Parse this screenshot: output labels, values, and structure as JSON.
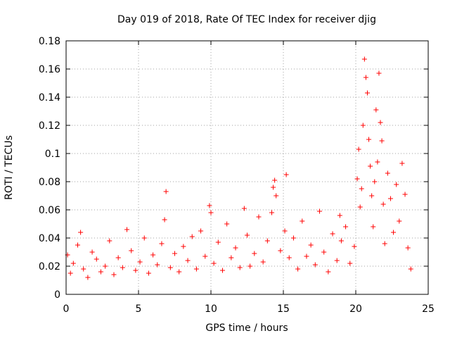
{
  "chart_data": {
    "type": "scatter",
    "title": "Day 019 of 2018, Rate Of TEC Index for receiver djig",
    "xlabel": "GPS time / hours",
    "ylabel": "ROTI / TECUs",
    "xlim": [
      0,
      25
    ],
    "ylim": [
      0,
      0.18
    ],
    "xticks": [
      "0",
      "5",
      "10",
      "15",
      "20",
      "25"
    ],
    "yticks": [
      "0",
      "0.02",
      "0.04",
      "0.06",
      "0.08",
      "0.1",
      "0.12",
      "0.14",
      "0.16",
      "0.18"
    ],
    "grid": true,
    "marker": "+",
    "color": "#ff0000",
    "series": [
      {
        "name": "ROTI",
        "x": [
          0.1,
          0.3,
          0.5,
          0.8,
          1.0,
          1.2,
          1.5,
          1.8,
          2.1,
          2.4,
          2.7,
          3.0,
          3.3,
          3.6,
          3.9,
          4.2,
          4.5,
          4.8,
          5.1,
          5.4,
          5.7,
          6.0,
          6.3,
          6.6,
          6.8,
          6.9,
          7.2,
          7.5,
          7.8,
          8.1,
          8.4,
          8.7,
          9.0,
          9.3,
          9.6,
          9.9,
          10.0,
          10.2,
          10.5,
          10.8,
          11.1,
          11.4,
          11.7,
          12.0,
          12.3,
          12.5,
          12.7,
          13.0,
          13.3,
          13.6,
          13.9,
          14.2,
          14.3,
          14.4,
          14.5,
          14.8,
          15.1,
          15.2,
          15.4,
          15.7,
          16.0,
          16.3,
          16.6,
          16.9,
          17.2,
          17.5,
          17.8,
          18.1,
          18.4,
          18.7,
          18.9,
          19.0,
          19.3,
          19.6,
          19.9,
          20.1,
          20.2,
          20.3,
          20.4,
          20.5,
          20.6,
          20.7,
          20.8,
          20.9,
          21.0,
          21.1,
          21.2,
          21.3,
          21.4,
          21.5,
          21.6,
          21.7,
          21.8,
          21.9,
          22.0,
          22.2,
          22.4,
          22.6,
          22.8,
          23.0,
          23.2,
          23.4,
          23.6,
          23.8
        ],
        "y": [
          0.028,
          0.015,
          0.022,
          0.035,
          0.044,
          0.018,
          0.012,
          0.03,
          0.025,
          0.016,
          0.02,
          0.038,
          0.014,
          0.026,
          0.019,
          0.046,
          0.031,
          0.017,
          0.023,
          0.04,
          0.015,
          0.028,
          0.021,
          0.036,
          0.053,
          0.073,
          0.019,
          0.029,
          0.016,
          0.034,
          0.024,
          0.041,
          0.018,
          0.045,
          0.027,
          0.063,
          0.058,
          0.022,
          0.037,
          0.017,
          0.05,
          0.026,
          0.033,
          0.019,
          0.061,
          0.042,
          0.02,
          0.029,
          0.055,
          0.023,
          0.038,
          0.058,
          0.076,
          0.081,
          0.07,
          0.031,
          0.045,
          0.085,
          0.026,
          0.04,
          0.018,
          0.052,
          0.027,
          0.035,
          0.021,
          0.059,
          0.03,
          0.016,
          0.043,
          0.024,
          0.056,
          0.038,
          0.048,
          0.022,
          0.034,
          0.082,
          0.103,
          0.062,
          0.075,
          0.12,
          0.167,
          0.154,
          0.143,
          0.11,
          0.091,
          0.07,
          0.048,
          0.08,
          0.131,
          0.094,
          0.157,
          0.122,
          0.109,
          0.064,
          0.036,
          0.086,
          0.068,
          0.044,
          0.078,
          0.052,
          0.093,
          0.071,
          0.033,
          0.018
        ]
      }
    ]
  }
}
